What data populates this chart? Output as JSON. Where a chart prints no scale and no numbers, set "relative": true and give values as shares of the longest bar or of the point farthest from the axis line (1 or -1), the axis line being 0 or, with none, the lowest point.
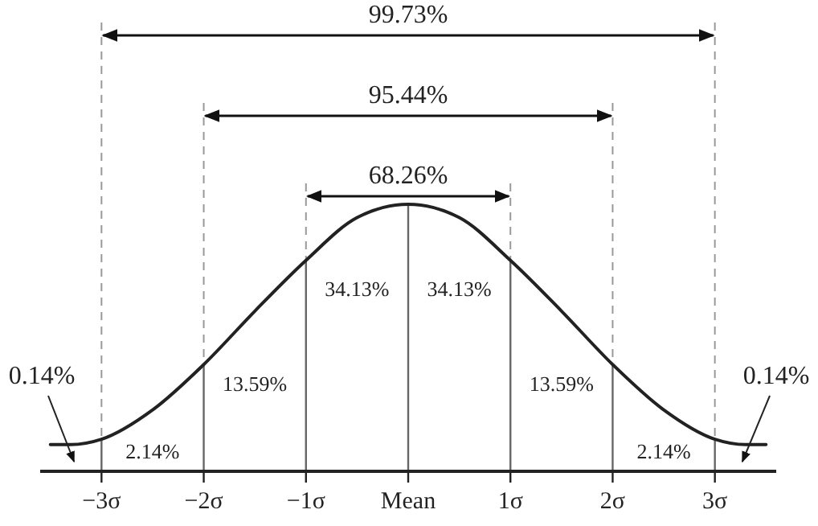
{
  "chart_data": {
    "type": "line",
    "relative": true,
    "x": [
      -3.5,
      -3.3,
      -3,
      -2.5,
      -2,
      -1.5,
      -1,
      -0.5,
      0,
      0.5,
      1,
      1.5,
      2,
      2.5,
      3,
      3.3,
      3.5
    ],
    "series": [
      {
        "color": "#222222",
        "values": [
          0.1,
          0.1,
          0.12,
          0.23,
          0.4,
          0.6,
          0.79,
          0.95,
          1,
          0.95,
          0.79,
          0.6,
          0.4,
          0.23,
          0.12,
          0.1,
          0.1
        ]
      }
    ],
    "xlim": [
      -3.6,
      3.6
    ],
    "xticks": [
      {
        "value": -3,
        "label": "−3σ"
      },
      {
        "value": -2,
        "label": "−2σ"
      },
      {
        "value": -1,
        "label": "−1σ"
      },
      {
        "value": 0,
        "label": "Mean"
      },
      {
        "value": 1,
        "label": "1σ"
      },
      {
        "value": 2,
        "label": "2σ"
      },
      {
        "value": 3,
        "label": "3σ"
      }
    ],
    "annotations": [
      "68.26%",
      "95.44%",
      "99.73%",
      "0.14%",
      "2.14%",
      "13.59%",
      "34.13%",
      "34.13%",
      "13.59%",
      "2.14%",
      "0.14%"
    ],
    "line_style": "solid",
    "grid": "x"
  }
}
